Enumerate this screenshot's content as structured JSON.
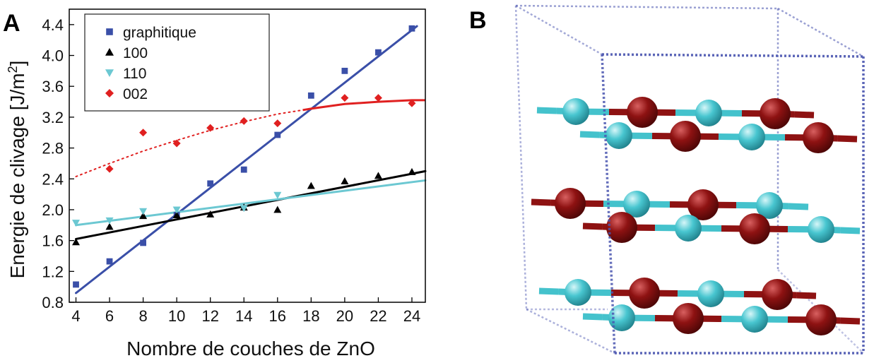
{
  "panels": {
    "a_label": "A",
    "b_label": "B"
  },
  "chart_data": {
    "type": "scatter",
    "xlabel": "Nombre de couches de ZnO",
    "ylabel_main": "Energie de clivage [J/m",
    "ylabel_sup": "2",
    "ylabel_end": "]",
    "xlim": [
      3.6,
      24.8
    ],
    "ylim": [
      0.8,
      4.6
    ],
    "xticks": [
      4,
      6,
      8,
      10,
      12,
      14,
      16,
      18,
      20,
      22,
      24
    ],
    "yticks": [
      "0.8",
      "1.2",
      "1.6",
      "2.0",
      "2.4",
      "2.8",
      "3.2",
      "3.6",
      "4.0",
      "4.4"
    ],
    "series": [
      {
        "name": "graphitique",
        "color": "#3a4fa8",
        "marker": "square",
        "x": [
          4,
          6,
          8,
          10,
          12,
          14,
          16,
          18,
          20,
          22,
          24
        ],
        "y": [
          1.03,
          1.33,
          1.57,
          1.93,
          2.34,
          2.52,
          2.97,
          3.48,
          3.8,
          4.04,
          4.35
        ],
        "fit": {
          "kind": "line",
          "x": [
            4,
            24.3
          ],
          "y": [
            0.92,
            4.38
          ],
          "style": "solid"
        }
      },
      {
        "name": "100",
        "color": "#000000",
        "marker": "triangle-up",
        "x": [
          4,
          6,
          8,
          10,
          12,
          14,
          16,
          18,
          20,
          22,
          24
        ],
        "y": [
          1.58,
          1.78,
          1.92,
          1.93,
          1.94,
          2.03,
          2.0,
          2.31,
          2.37,
          2.44,
          2.49
        ],
        "fit": {
          "kind": "line",
          "x": [
            4,
            24.8
          ],
          "y": [
            1.62,
            2.5
          ],
          "style": "solid"
        }
      },
      {
        "name": "110",
        "color": "#6cc8d2",
        "marker": "triangle-down",
        "x": [
          4,
          6,
          8,
          10,
          14,
          16
        ],
        "y": [
          1.83,
          1.86,
          1.98,
          2.0,
          2.02,
          2.19
        ],
        "fit": {
          "kind": "line",
          "x": [
            4,
            24.8
          ],
          "y": [
            1.8,
            2.38
          ],
          "style": "solid"
        }
      },
      {
        "name": "002",
        "color": "#e02020",
        "marker": "diamond",
        "x": [
          6,
          8,
          10,
          12,
          14,
          16,
          20,
          22,
          24
        ],
        "y": [
          2.53,
          3.0,
          2.86,
          3.06,
          3.15,
          3.12,
          3.45,
          3.45,
          3.38
        ],
        "fit": {
          "kind": "curve",
          "x": [
            4,
            6,
            8,
            10,
            12,
            14,
            16,
            18,
            20,
            22,
            24,
            24.8
          ],
          "y": [
            2.43,
            2.6,
            2.76,
            2.9,
            3.03,
            3.14,
            3.24,
            3.31,
            3.37,
            3.4,
            3.42,
            3.42
          ],
          "dotted_until": 17.5
        }
      }
    ],
    "legend_position": "top-left"
  },
  "structure": {
    "atom_cyan": "#44c2cc",
    "atom_red": "#8e1212",
    "box_color": "#4a55b0"
  }
}
